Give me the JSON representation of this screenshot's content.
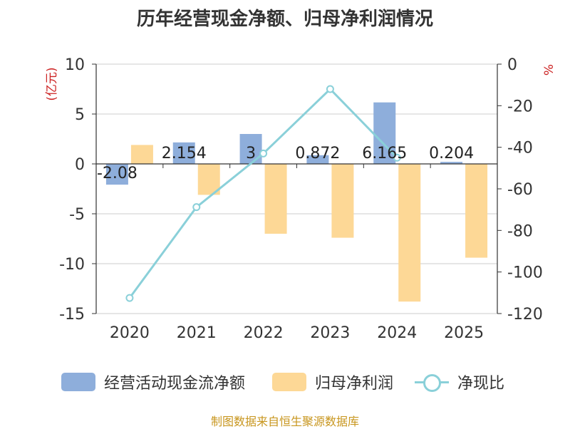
{
  "chart_data": {
    "type": "bar",
    "title": "历年经营现金净额、归母净利润情况",
    "categories": [
      "2020",
      "2021",
      "2022",
      "2023",
      "2024",
      "2025"
    ],
    "left_axis": {
      "unit": "(亿元)",
      "ylim": [
        -15,
        10
      ],
      "ticks": [
        10,
        5,
        0,
        -5,
        -10,
        -15
      ]
    },
    "right_axis": {
      "unit": "%",
      "ylim": [
        -120,
        0
      ],
      "ticks": [
        0,
        -20,
        -40,
        -60,
        -80,
        -100,
        -120
      ]
    },
    "series": [
      {
        "name": "经营活动现金流净额",
        "type": "bar",
        "axis": "left",
        "color": "#8eaedb",
        "values": [
          -2.08,
          2.154,
          3,
          0.872,
          6.165,
          0.204
        ],
        "labels": [
          "-2.08",
          "2.154",
          "3",
          "0.872",
          "6.165",
          "0.204"
        ]
      },
      {
        "name": "归母净利润",
        "type": "bar",
        "axis": "left",
        "color": "#fdd896",
        "values": [
          1.9,
          -3.1,
          -7.0,
          -7.4,
          -13.8,
          -9.4
        ]
      },
      {
        "name": "净现比",
        "type": "line",
        "axis": "right",
        "color": "#8ad0d9",
        "values": [
          -112.5,
          -68.8,
          -43.0,
          -12.0,
          -45.0,
          null
        ]
      }
    ],
    "grid": true,
    "legend_position": "bottom"
  },
  "source_text": "制图数据来自恒生聚源数据库"
}
